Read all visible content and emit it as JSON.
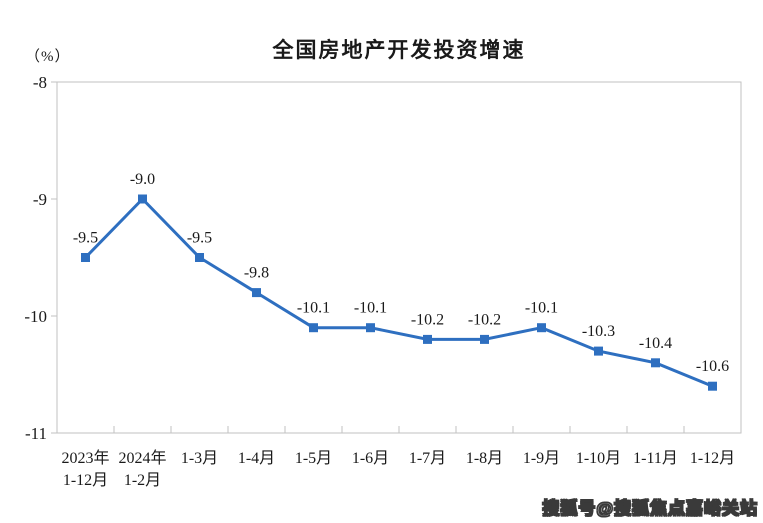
{
  "page": {
    "watermark": "搜狐号@搜狐焦点嘉峪关站"
  },
  "chart_data": {
    "type": "line",
    "title": "全国房地产开发投资增速",
    "unit_label": "（%）",
    "categories": [
      "2023年\n1-12月",
      "2024年\n1-2月",
      "1-3月",
      "1-4月",
      "1-5月",
      "1-6月",
      "1-7月",
      "1-8月",
      "1-9月",
      "1-10月",
      "1-11月",
      "1-12月"
    ],
    "values": [
      -9.5,
      -9.0,
      -9.5,
      -9.8,
      -10.1,
      -10.1,
      -10.2,
      -10.2,
      -10.1,
      -10.3,
      -10.4,
      -10.6
    ],
    "data_labels": [
      "-9.5",
      "-9.0",
      "-9.5",
      "-9.8",
      "-10.1",
      "-10.1",
      "-10.2",
      "-10.2",
      "-10.1",
      "-10.3",
      "-10.4",
      "-10.6"
    ],
    "y_ticks": [
      "-8",
      "-9",
      "-10",
      "-11"
    ],
    "ylim": [
      -11,
      -8
    ],
    "xlabel": "",
    "ylabel": "（%）",
    "grid": false,
    "legend": false,
    "line_color": "#2E6FC0",
    "axis_color": "#C2C2C2",
    "marker": "square"
  }
}
